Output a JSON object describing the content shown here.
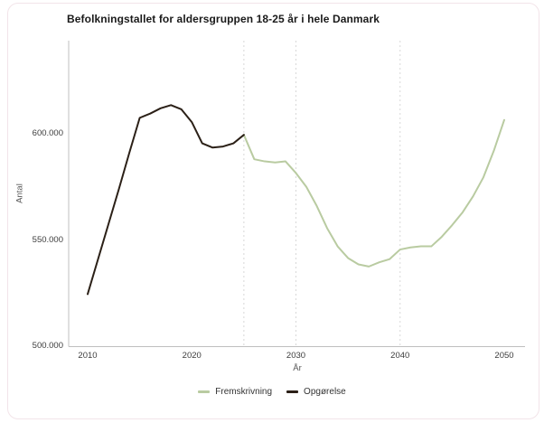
{
  "card": {
    "background": "#ffffff",
    "border_color": "#f2e4e9"
  },
  "styles": {
    "axis_color": "#bfbfbf",
    "grid_color": "#d8d8d8",
    "tick_text_color": "#3c3c3c",
    "axis_label_color": "#555555",
    "title_color": "#1a1a1a",
    "legend_text_color": "#333333"
  },
  "chart_data": {
    "type": "line",
    "title": "Befolkningstallet for aldersgruppen 18-25 år i hele Danmark",
    "xlabel": "År",
    "ylabel": "Antal",
    "xlim": [
      2008.2,
      2052
    ],
    "ylim": [
      500000,
      644000
    ],
    "x_ticks": [
      {
        "label": "2010",
        "value": 2010
      },
      {
        "label": "2020",
        "value": 2020
      },
      {
        "label": "2030",
        "value": 2030
      },
      {
        "label": "2040",
        "value": 2040
      },
      {
        "label": "2050",
        "value": 2050
      }
    ],
    "y_ticks": [
      {
        "label": "500.000",
        "value": 500000
      },
      {
        "label": "550.000",
        "value": 550000
      },
      {
        "label": "600.000",
        "value": 600000
      }
    ],
    "gridlines_x_dashed": [
      2025,
      2030,
      2040
    ],
    "legend_position": "bottom-center",
    "series": [
      {
        "name": "Fremskrivning",
        "color": "#b9cba1",
        "x": [
          2025,
          2026,
          2027,
          2028,
          2029,
          2030,
          2031,
          2032,
          2033,
          2034,
          2035,
          2036,
          2037,
          2038,
          2039,
          2040,
          2041,
          2042,
          2043,
          2044,
          2045,
          2046,
          2047,
          2048,
          2049,
          2050
        ],
        "values": [
          599500,
          588000,
          587000,
          586500,
          587000,
          581500,
          575000,
          566000,
          555500,
          547000,
          541500,
          538500,
          537500,
          539500,
          541000,
          545500,
          546500,
          547000,
          547000,
          551500,
          557000,
          563000,
          570500,
          579500,
          592000,
          606500
        ]
      },
      {
        "name": "Opgørelse",
        "color": "#2b2017",
        "x": [
          2010,
          2011,
          2012,
          2013,
          2014,
          2015,
          2016,
          2017,
          2018,
          2019,
          2020,
          2021,
          2022,
          2023,
          2024,
          2025
        ],
        "values": [
          524500,
          541000,
          557500,
          574000,
          591000,
          607500,
          609500,
          612000,
          613500,
          611500,
          605500,
          595500,
          593500,
          594000,
          595500,
          599500
        ]
      }
    ]
  }
}
